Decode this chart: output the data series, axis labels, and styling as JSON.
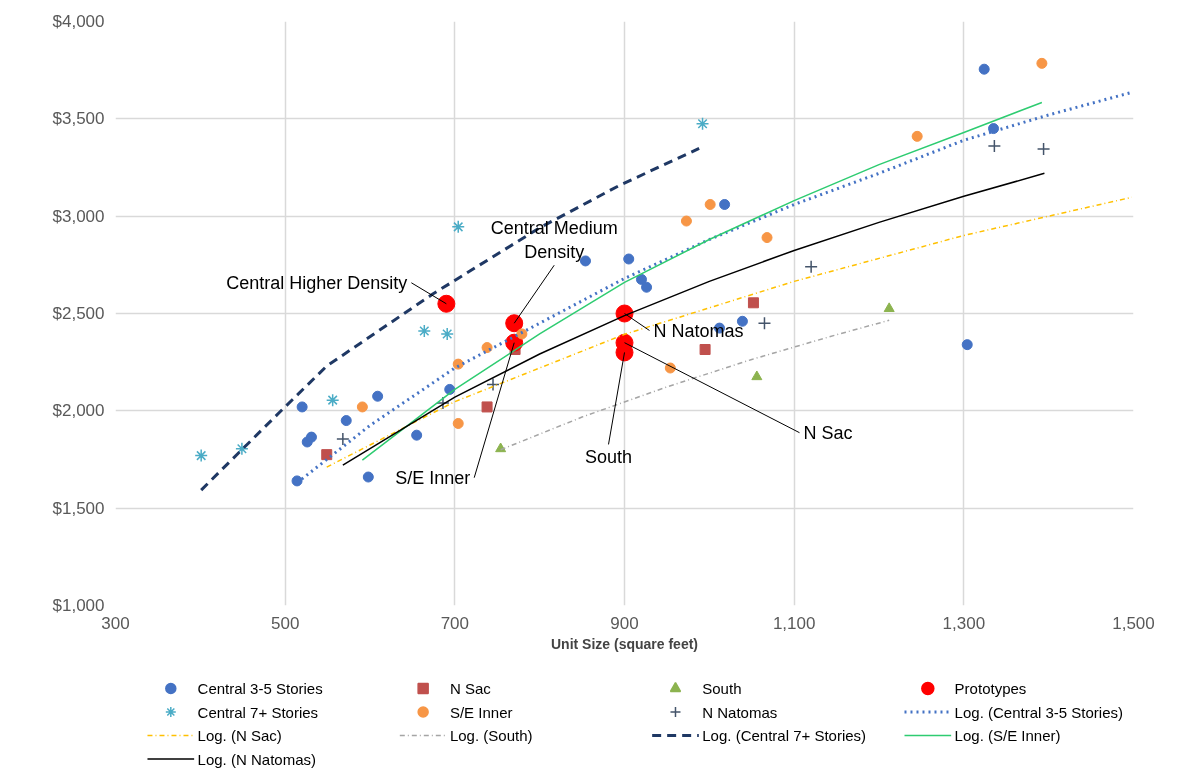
{
  "chart_data": {
    "type": "scatter",
    "xlabel": "Unit Size (square feet)",
    "xlim": [
      300,
      1500
    ],
    "ylim": [
      1000,
      4000
    ],
    "xticks": [
      300,
      500,
      700,
      900,
      {
        "value": 1100,
        "label": "1,100"
      },
      {
        "value": 1300,
        "label": "1,300"
      },
      {
        "value": 1500,
        "label": "1,500"
      }
    ],
    "yticks": [
      {
        "value": 1000,
        "label": "$1,000"
      },
      {
        "value": 1500,
        "label": "$1,500"
      },
      {
        "value": 2000,
        "label": "$2,000"
      },
      {
        "value": 2500,
        "label": "$2,500"
      },
      {
        "value": 3000,
        "label": "$3,000"
      },
      {
        "value": 3500,
        "label": "$3,500"
      },
      {
        "value": 4000,
        "label": "$4,000"
      }
    ],
    "grid": true,
    "legend": "bottom",
    "series": [
      {
        "name": "Central 3-5 Stories",
        "marker": "circle",
        "color": "#4472c4",
        "x": [
          520,
          572,
          609,
          526,
          531,
          514,
          598,
          655,
          694,
          854,
          905,
          920,
          926,
          1018,
          1012,
          1039,
          1324,
          1335,
          1304
        ],
        "values": [
          2020,
          1950,
          2075,
          1840,
          1865,
          1640,
          1660,
          1875,
          2110,
          2770,
          2780,
          2675,
          2635,
          3060,
          2425,
          2460,
          3755,
          3450,
          2340
        ]
      },
      {
        "name": "N Sac",
        "marker": "square",
        "color": "#c0504d",
        "x": [
          549,
          738,
          771,
          1052,
          995
        ],
        "values": [
          1775,
          2020,
          2315,
          2555,
          2315
        ]
      },
      {
        "name": "South",
        "marker": "triangle",
        "color": "#8cb34f",
        "x": [
          754,
          1056,
          1212
        ],
        "values": [
          1805,
          2175,
          2525
        ]
      },
      {
        "name": "Prototypes",
        "marker": "circle",
        "color": "#ff0000",
        "x": [
          690,
          770,
          770,
          900,
          900,
          900
        ],
        "values": [
          2550,
          2450,
          2350,
          2500,
          2350,
          2300
        ]
      },
      {
        "name": "Central 7+ Stories",
        "marker": "cross",
        "color": "#4bacc6",
        "x": [
          401,
          449,
          556,
          664,
          691,
          704,
          992
        ],
        "values": [
          1770,
          1805,
          2055,
          2410,
          2395,
          2945,
          3475
        ]
      },
      {
        "name": "S/E Inner",
        "marker": "circle",
        "color": "#f79646",
        "x": [
          591,
          704,
          738,
          779,
          704,
          973,
          1001,
          1068,
          954,
          1245,
          1392
        ],
        "values": [
          2020,
          2240,
          2325,
          2395,
          1935,
          2975,
          3060,
          2890,
          2220,
          3410,
          3785
        ]
      },
      {
        "name": "N Natomas",
        "marker": "cross",
        "color": "#44546a",
        "x": [
          568,
          686,
          745,
          1120,
          1065,
          1336,
          1394
        ],
        "values": [
          1855,
          2040,
          2135,
          2740,
          2450,
          3360,
          3345
        ]
      },
      {
        "name": "Log. (Central 3-5 Stories)",
        "type": "line",
        "line_style": "dotted",
        "color": "#4472c4",
        "x": [
          514,
          600,
          700,
          800,
          900,
          1000,
          1100,
          1200,
          1300,
          1400,
          1498
        ],
        "values": [
          1630,
          1925,
          2220,
          2450,
          2680,
          2880,
          3060,
          3220,
          3390,
          3520,
          3636
        ]
      },
      {
        "name": "Log. (N Sac)",
        "type": "line",
        "line_style": "dashed",
        "color": "#ffc000",
        "x": [
          549,
          700,
          900,
          1100,
          1300,
          1498
        ],
        "values": [
          1711,
          2047,
          2393,
          2665,
          2901,
          3097
        ]
      },
      {
        "name": "Log. (South)",
        "type": "line",
        "line_style": "dashed",
        "color": "#a5a5a5",
        "x": [
          754,
          850,
          950,
          1050,
          1150,
          1212
        ],
        "values": [
          1800,
          1968,
          2123,
          2264,
          2391,
          2465
        ]
      },
      {
        "name": "Log. (Central 7+ Stories)",
        "type": "line",
        "line_style": "dashed",
        "color": "#1f3864",
        "x": [
          401,
          494,
          549,
          674,
          800,
          894,
          988
        ],
        "values": [
          1593,
          1995,
          2230,
          2600,
          2940,
          3158,
          3348
        ]
      },
      {
        "name": "Log. (S/E Inner)",
        "type": "line",
        "line_style": "solid",
        "color": "#2ecc71",
        "x": [
          591,
          700,
          800,
          900,
          1000,
          1100,
          1200,
          1300,
          1392
        ],
        "values": [
          1747,
          2110,
          2395,
          2660,
          2880,
          3080,
          3265,
          3430,
          3584
        ]
      },
      {
        "name": "Log. (N Natomas)",
        "type": "line",
        "line_style": "solid",
        "color": "#000000",
        "x": [
          568,
          700,
          800,
          900,
          1000,
          1100,
          1200,
          1300,
          1395
        ],
        "values": [
          1721,
          2070,
          2292,
          2489,
          2665,
          2824,
          2968,
          3102,
          3220
        ]
      }
    ],
    "annotations": [
      {
        "text": "Central Higher Density",
        "x": 690,
        "y": 2550
      },
      {
        "text": "Central Medium\nDensity",
        "x": 770,
        "y": 2450
      },
      {
        "text": "S/E Inner",
        "x": 770,
        "y": 2350
      },
      {
        "text": "N Natomas",
        "x": 900,
        "y": 2500
      },
      {
        "text": "N Sac",
        "x": 900,
        "y": 2350
      },
      {
        "text": "South",
        "x": 900,
        "y": 2300
      }
    ]
  }
}
